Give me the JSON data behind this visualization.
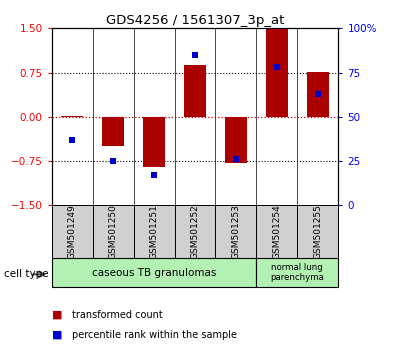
{
  "title": "GDS4256 / 1561307_3p_at",
  "samples": [
    "GSM501249",
    "GSM501250",
    "GSM501251",
    "GSM501252",
    "GSM501253",
    "GSM501254",
    "GSM501255"
  ],
  "red_values": [
    0.02,
    -0.5,
    -0.85,
    0.88,
    -0.78,
    1.5,
    0.76
  ],
  "blue_percentiles": [
    37,
    25,
    17,
    85,
    26,
    78,
    63
  ],
  "ylim_left": [
    -1.5,
    1.5
  ],
  "yticks_left": [
    -1.5,
    -0.75,
    0,
    0.75,
    1.5
  ],
  "yticks_right": [
    0,
    25,
    50,
    75,
    100
  ],
  "group1_label": "caseous TB granulomas",
  "group2_label": "normal lung\nparenchyma",
  "group1_color": "#b3f0b3",
  "group2_color": "#b3f0b3",
  "bar_color": "#AA0000",
  "dot_color": "#0000CC",
  "bg_color": "#d0d0d0",
  "legend_label_red": "transformed count",
  "legend_label_blue": "percentile rank within the sample",
  "cell_type_label": "cell type"
}
